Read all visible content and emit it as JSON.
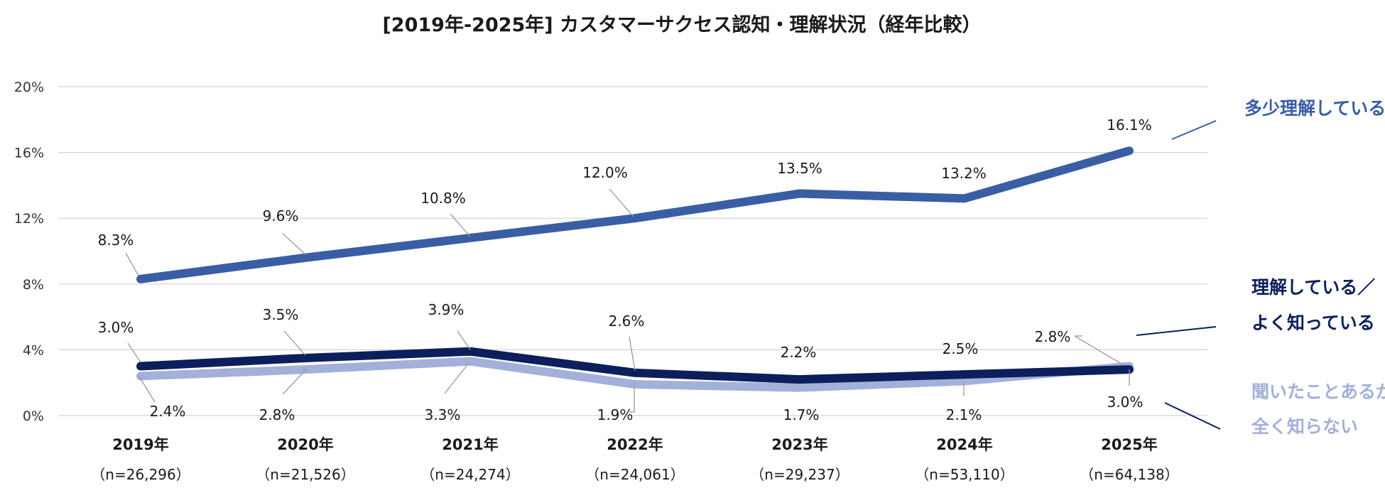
{
  "chart_data": {
    "type": "line",
    "title": "[2019年-2025年] カスタマーサクセス認知・理解状況（経年比較）",
    "categories": [
      "2019年",
      "2020年",
      "2021年",
      "2022年",
      "2023年",
      "2024年",
      "2025年"
    ],
    "category_notes": [
      "（n=26,296）",
      "（n=21,526）",
      "（n=24,274）",
      "（n=24,061）",
      "（n=29,237）",
      "（n=53,110）",
      "（n=64,138）"
    ],
    "ylim": [
      0,
      20
    ],
    "yticks": [
      0,
      4,
      8,
      12,
      16,
      20
    ],
    "ytick_labels": [
      "0%",
      "4%",
      "8%",
      "12%",
      "16%",
      "20%"
    ],
    "grid": true,
    "series": [
      {
        "name": "多少理解している",
        "color": "#3a5ea3",
        "values": [
          8.3,
          9.6,
          10.8,
          12.0,
          13.5,
          13.2,
          16.1
        ],
        "labels": [
          "8.3%",
          "9.6%",
          "10.8%",
          "12.0%",
          "13.5%",
          "13.2%",
          "16.1%"
        ]
      },
      {
        "name": "理解している／よく知っている",
        "name_lines": [
          "理解している／",
          "よく知っている"
        ],
        "color": "#0c1f5c",
        "values": [
          3.0,
          3.5,
          3.9,
          2.6,
          2.2,
          2.5,
          2.8
        ],
        "labels": [
          "3.0%",
          "3.5%",
          "3.9%",
          "2.6%",
          "2.2%",
          "2.5%",
          "2.8%"
        ]
      },
      {
        "name": "聞いたことあるが全く知らない",
        "name_lines": [
          "聞いたことあるが",
          "全く知らない"
        ],
        "color": "#a3b0da",
        "values": [
          2.4,
          2.8,
          3.3,
          1.9,
          1.7,
          2.1,
          3.0
        ],
        "labels": [
          "2.4%",
          "2.8%",
          "3.3%",
          "1.9%",
          "1.7%",
          "2.1%",
          "3.0%"
        ]
      }
    ]
  }
}
